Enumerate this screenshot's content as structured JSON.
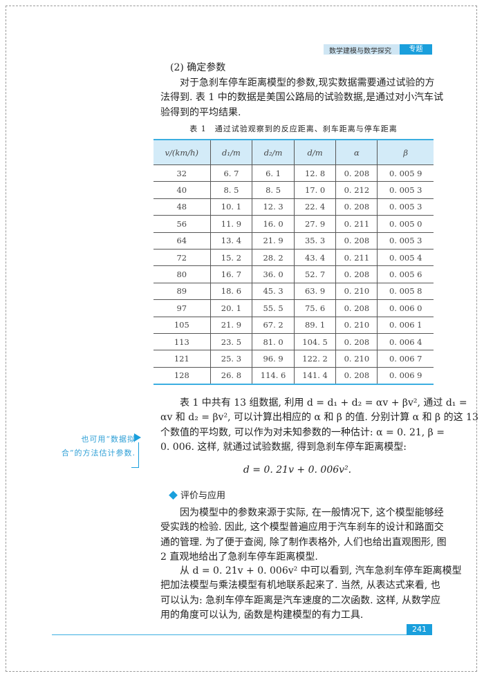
{
  "header": {
    "title": "数学建模与数学探究",
    "tag": "专题"
  },
  "heading": "(2) 确定参数",
  "para1": [
    "对于急刹车停车距离模型的参数,现实数据需要通过试验的方",
    "法得到. 表 1 中的数据是美国公路局的试验数据,是通过对小汽车试",
    "验得到的平均结果."
  ],
  "table": {
    "caption": "表 1　通过试验观察到的反应距离、刹车距离与停车距离",
    "headers": [
      "v/(km/h)",
      "d₁/m",
      "d₂/m",
      "d/m",
      "α",
      "β"
    ],
    "rows": [
      [
        "32",
        "6. 7",
        "6. 1",
        "12. 8",
        "0. 208",
        "0. 005 9"
      ],
      [
        "40",
        "8. 5",
        "8. 5",
        "17. 0",
        "0. 212",
        "0. 005 3"
      ],
      [
        "48",
        "10. 1",
        "12. 3",
        "22. 4",
        "0. 208",
        "0. 005 3"
      ],
      [
        "56",
        "11. 9",
        "16. 0",
        "27. 9",
        "0. 211",
        "0. 005 0"
      ],
      [
        "64",
        "13. 4",
        "21. 9",
        "35. 3",
        "0. 208",
        "0. 005 3"
      ],
      [
        "72",
        "15. 2",
        "28. 2",
        "43. 4",
        "0. 211",
        "0. 005 4"
      ],
      [
        "80",
        "16. 7",
        "36. 0",
        "52. 7",
        "0. 208",
        "0. 005 6"
      ],
      [
        "89",
        "18. 6",
        "45. 3",
        "63. 9",
        "0. 210",
        "0. 005 8"
      ],
      [
        "97",
        "20. 1",
        "55. 5",
        "75. 6",
        "0. 208",
        "0. 006 0"
      ],
      [
        "105",
        "21. 9",
        "67. 2",
        "89. 1",
        "0. 210",
        "0. 006 1"
      ],
      [
        "113",
        "23. 5",
        "81. 0",
        "104. 5",
        "0. 208",
        "0. 006 4"
      ],
      [
        "121",
        "25. 3",
        "96. 9",
        "122. 2",
        "0. 210",
        "0. 006 7"
      ],
      [
        "128",
        "26. 8",
        "114. 6",
        "141. 4",
        "0. 208",
        "0. 006 9"
      ]
    ]
  },
  "para2": [
    "表 1 中共有 13 组数据, 利用 d = d₁ + d₂ = αv + βv², 通过 d₁ =",
    "αv 和 d₂ = βv², 可以计算出相应的 α 和 β 的值. 分别计算 α 和 β 的这 13",
    "个数值的平均数, 可以作为对未知参数的一种估计: α = 0. 21, β =",
    "0. 006. 这样, 就通过试验数据, 得到急刹车停车距离模型:"
  ],
  "formula": "d = 0. 21v + 0. 006v².",
  "side_note": [
    "也可用“数据拟",
    "合”的方法估计参数."
  ],
  "section": "评价与应用",
  "para3": [
    "因为模型中的参数来源于实际, 在一般情况下, 这个模型能够经",
    "受实践的检验. 因此, 这个模型普遍应用于汽车刹车的设计和路面交",
    "通的管理. 为了便于查阅, 除了制作表格外, 人们也给出直观图形, 图",
    "2 直观地给出了急刹车停车距离模型."
  ],
  "para4": [
    "从 d = 0. 21v + 0. 006v² 中可以看到, 汽车急刹车停车距离模型",
    "把加法模型与乘法模型有机地联系起来了. 当然, 从表达式来看, 也",
    "可以认为: 急刹车停车距离是汽车速度的二次函数. 这样, 从数学应",
    "用的角度可以认为, 函数是构建模型的有力工具."
  ],
  "page_number": "241",
  "colors": {
    "accent": "#1a9fdc",
    "header_band": "#cfe6f4",
    "table_header": "#d3ebf8"
  }
}
